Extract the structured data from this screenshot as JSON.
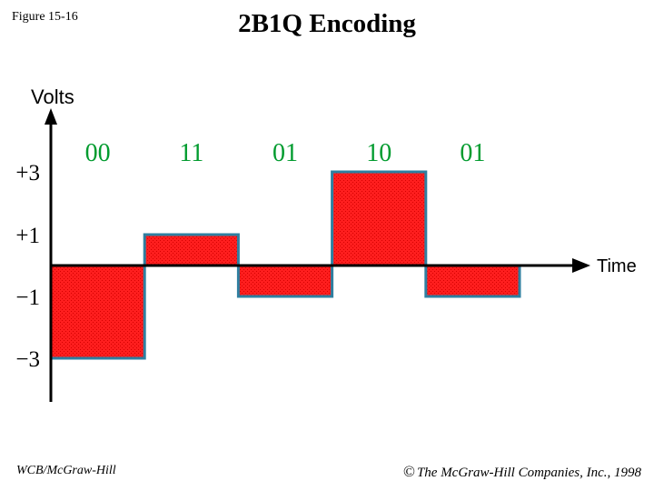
{
  "figure_label": "Figure 15-16",
  "title": "2B1Q Encoding",
  "footer": {
    "publisher": "WCB/McGraw-Hill",
    "copyright_symbol": "©",
    "copyright_text": "The McGraw-Hill Companies, Inc., 1998"
  },
  "chart_data": {
    "type": "step",
    "ylabel": "Volts",
    "xlabel": "Time",
    "y_levels": [
      3,
      1,
      -1,
      -3
    ],
    "y_level_labels": [
      "+3",
      "+1",
      "−1",
      "−3"
    ],
    "symbols": [
      {
        "bits": "00",
        "level": -3
      },
      {
        "bits": "11",
        "level": 1
      },
      {
        "bits": "01",
        "level": -1
      },
      {
        "bits": "10",
        "level": 3
      },
      {
        "bits": "01",
        "level": -1
      }
    ],
    "colors": {
      "bar_fill": "#ff1e1e",
      "bar_stroke": "#2f7fa0",
      "bits_label": "#009b2e",
      "axis": "#000000"
    }
  }
}
